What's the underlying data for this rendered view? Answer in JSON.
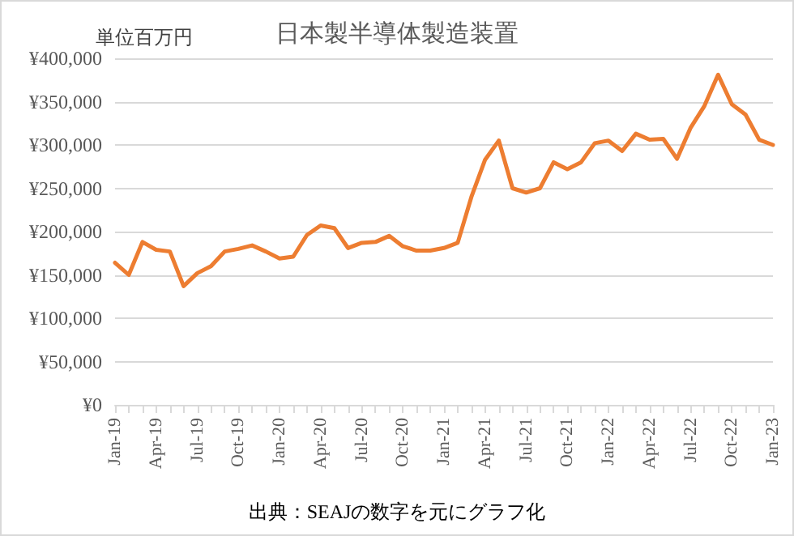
{
  "chart_data": {
    "type": "line",
    "title": "日本製半導体製造装置",
    "ylabel": "単位百万円",
    "annotations": [
      "出典：SEAJの数字を元にグラフ化"
    ],
    "categories": [
      "Jan-19",
      null,
      null,
      "Apr-19",
      null,
      null,
      "Jul-19",
      null,
      null,
      "Oct-19",
      null,
      null,
      "Jan-20",
      null,
      null,
      "Apr-20",
      null,
      null,
      "Jul-20",
      null,
      null,
      "Oct-20",
      null,
      null,
      "Jan-21",
      null,
      null,
      "Apr-21",
      null,
      null,
      "Jul-21",
      null,
      null,
      "Oct-21",
      null,
      null,
      "Jan-22",
      null,
      null,
      "Apr-22",
      null,
      null,
      "Jul-22",
      null,
      null,
      "Oct-22",
      null,
      null,
      "Jan-23"
    ],
    "series": [
      {
        "color": "#ed7d31",
        "values": [
          164000,
          150000,
          188000,
          179000,
          177000,
          137000,
          152000,
          160000,
          177000,
          180000,
          184000,
          177000,
          169000,
          171000,
          196000,
          207000,
          204000,
          181000,
          187000,
          188000,
          195000,
          183000,
          178000,
          178000,
          181000,
          187000,
          240000,
          283000,
          305000,
          250000,
          245000,
          250000,
          280000,
          272000,
          280000,
          302000,
          305000,
          293000,
          313000,
          306000,
          307000,
          284000,
          320000,
          345000,
          381000,
          347000,
          335000,
          306000,
          300000
        ]
      }
    ],
    "ylim": [
      0,
      400000
    ],
    "yticks": [
      {
        "value": 0,
        "label": "¥0"
      },
      {
        "value": 50000,
        "label": "¥50,000"
      },
      {
        "value": 100000,
        "label": "¥100,000"
      },
      {
        "value": 150000,
        "label": "¥150,000"
      },
      {
        "value": 200000,
        "label": "¥200,000"
      },
      {
        "value": 250000,
        "label": "¥250,000"
      },
      {
        "value": 300000,
        "label": "¥300,000"
      },
      {
        "value": 350000,
        "label": "¥350,000"
      },
      {
        "value": 400000,
        "label": "¥400,000"
      }
    ],
    "grid": "y",
    "marker": "none",
    "line_style": "solid"
  }
}
